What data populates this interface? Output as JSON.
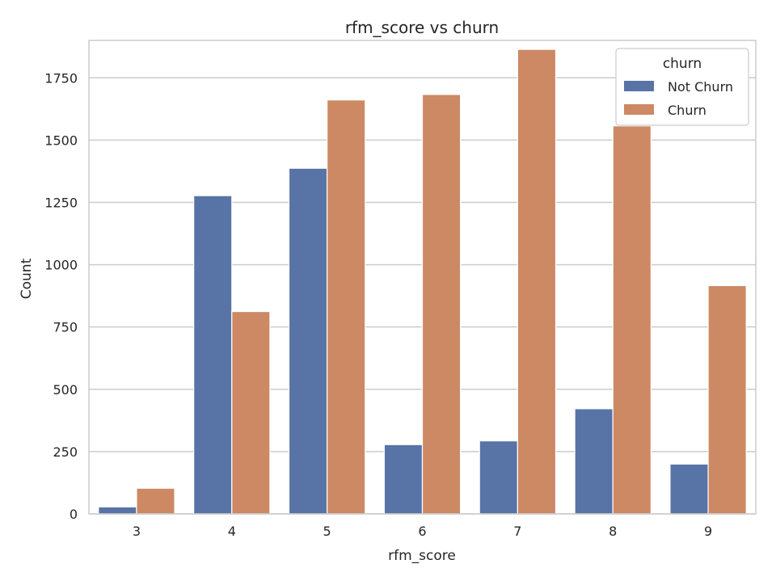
{
  "chart_data": {
    "type": "bar",
    "title": "rfm_score vs churn",
    "xlabel": "rfm_score",
    "ylabel": "Count",
    "categories": [
      "3",
      "4",
      "5",
      "6",
      "7",
      "8",
      "9"
    ],
    "ylim": [
      0,
      1900
    ],
    "yticks": [
      0,
      250,
      500,
      750,
      1000,
      1250,
      1500,
      1750
    ],
    "grid": true,
    "legend": {
      "title": "churn",
      "placement": "top-right"
    },
    "series": [
      {
        "name": "Not Churn",
        "color": "#5874a6",
        "values": [
          28,
          1277,
          1387,
          278,
          293,
          422,
          200
        ]
      },
      {
        "name": "Churn",
        "color": "#cc8963",
        "values": [
          103,
          812,
          1661,
          1683,
          1864,
          1557,
          916
        ]
      }
    ]
  }
}
